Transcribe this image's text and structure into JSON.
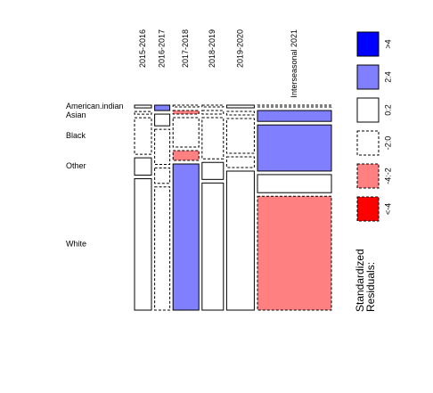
{
  "chart_data": {
    "type": "mosaic",
    "categories": [
      "2015-2016",
      "2016-2017",
      "2017-2018",
      "2018-2019",
      "2019-2020",
      "Interseasonal 2021"
    ],
    "rows": [
      "American.indian",
      "Asian",
      "Black",
      "Other",
      "White"
    ],
    "widths": [
      19,
      17,
      29,
      24,
      31,
      83
    ],
    "heights": [
      [
        3,
        3,
        40,
        19,
        144
      ],
      [
        6,
        13,
        39,
        17,
        137
      ],
      [
        2,
        4,
        33,
        11,
        164
      ],
      [
        2,
        4,
        46,
        19,
        142
      ],
      [
        3,
        4,
        39,
        12,
        156
      ],
      [
        2,
        12,
        51,
        20,
        126
      ]
    ],
    "shade": [
      [
        2,
        3,
        3,
        2,
        2
      ],
      [
        1,
        2,
        3,
        3,
        3
      ],
      [
        3,
        4,
        3,
        4,
        1
      ],
      [
        3,
        3,
        3,
        2,
        2
      ],
      [
        2,
        3,
        3,
        3,
        2
      ],
      [
        3,
        1,
        1,
        2,
        4
      ]
    ],
    "legend_title": [
      "Standardized",
      "Residuals:"
    ],
    "legend": [
      {
        "label": ">4",
        "color": "#0000ff",
        "dashed": false
      },
      {
        "label": "2:4",
        "color": "#8080ff",
        "dashed": false
      },
      {
        "label": "0:2",
        "color": "#ffffff",
        "dashed": false
      },
      {
        "label": "-2:0",
        "color": "#ffffff",
        "dashed": true
      },
      {
        "label": "-4:-2",
        "color": "#ff8080",
        "dashed": true
      },
      {
        "label": "<-4",
        "color": "#ff0000",
        "dashed": true
      }
    ]
  }
}
